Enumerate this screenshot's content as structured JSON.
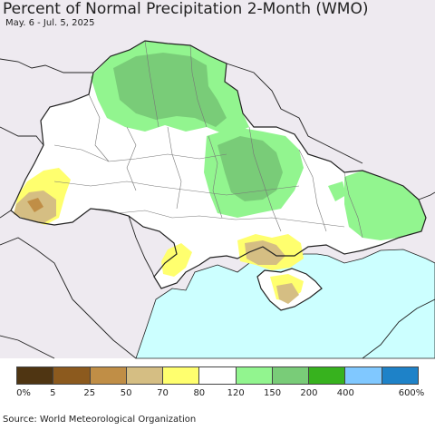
{
  "title": "Percent of Normal Precipitation 2-Month (WMO)",
  "subtitle": "May. 6 - Jul. 5, 2025",
  "source": "Source: World Meteorological Organization",
  "legend": {
    "colors": [
      "#4f3512",
      "#8c5a1e",
      "#c08e46",
      "#d5be83",
      "#ffff6e",
      "#ffffff",
      "#92f58f",
      "#79cc78",
      "#37b21e",
      "#80c8ff",
      "#1e82c8"
    ],
    "labels": [
      "0%",
      "5",
      "25",
      "50",
      "70",
      "80",
      "120",
      "150",
      "200",
      "400",
      "600%"
    ]
  },
  "map_colors": {
    "background": "#eeeaf0",
    "country_fill": "#ffffff",
    "sea": "#ccffff",
    "border": "#222222",
    "oblast_border": "#777777"
  }
}
